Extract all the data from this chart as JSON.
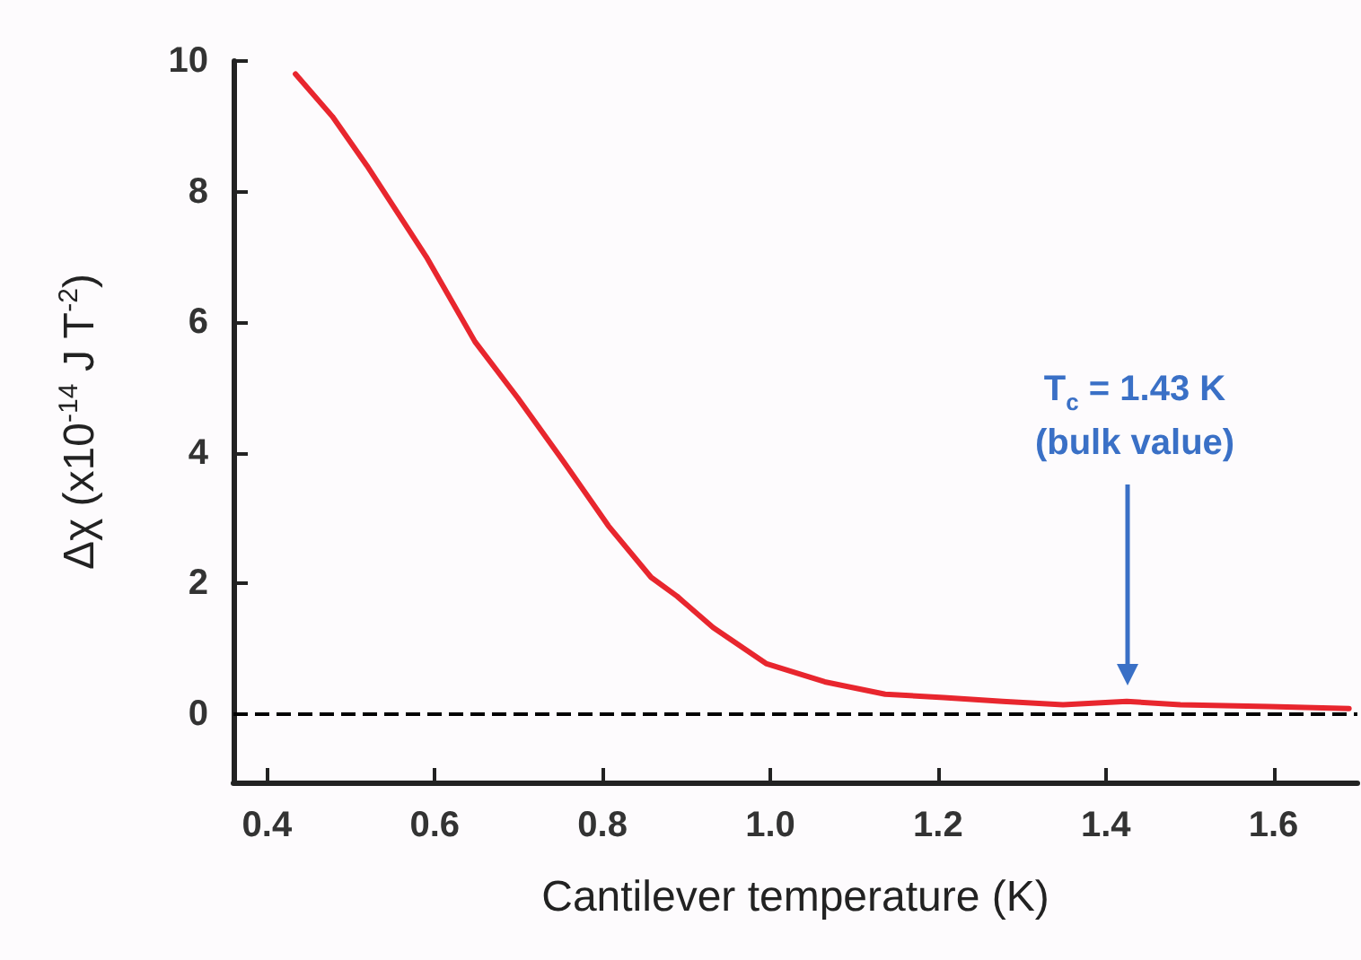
{
  "chart_data": {
    "type": "line",
    "xlabel": "Cantilever temperature (K)",
    "ylabel": "Δχ (x10$^{-14}$ J T$^{-2}$)",
    "x": [
      0.434,
      0.478,
      0.519,
      0.59,
      0.648,
      0.699,
      0.756,
      0.807,
      0.858,
      0.889,
      0.932,
      0.995,
      1.065,
      1.137,
      1.207,
      1.277,
      1.349,
      1.425,
      1.489,
      1.595,
      1.69
    ],
    "series": [
      {
        "color": "#e8262e",
        "values": [
          9.8,
          9.15,
          8.4,
          7.0,
          5.7,
          4.84,
          3.82,
          2.88,
          2.09,
          1.8,
          1.32,
          0.77,
          0.49,
          0.3,
          0.25,
          0.19,
          0.14,
          0.19,
          0.14,
          0.11,
          0.08
        ]
      }
    ],
    "xlim": [
      0.36,
      1.7
    ],
    "xticks": [
      0.4,
      0.6,
      0.8,
      {
        "value": 1,
        "label": "1.0"
      },
      1.2,
      1.4,
      1.6
    ],
    "ylim": [
      -1.05,
      10
    ],
    "yticks": [
      0,
      2,
      4,
      6,
      8,
      10
    ],
    "ref_lines": [
      {
        "axis": "y",
        "value": 0,
        "color": "#000000",
        "line_style": "dashed"
      }
    ],
    "annotations": [
      "T$_{c}$ = 1.43 K\n(bulk value)"
    ],
    "grid": false,
    "marker": "none",
    "line_style": "solid"
  }
}
